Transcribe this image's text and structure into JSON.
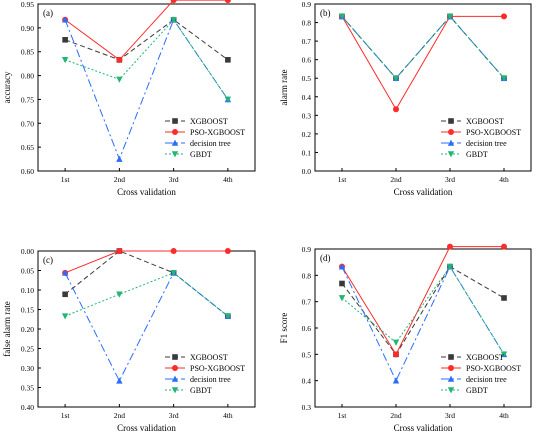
{
  "chart_data": [
    {
      "type": "line",
      "panel_label": "(a)",
      "xlabel": "Cross validation",
      "ylabel": "accuracy",
      "categories": [
        "1st",
        "2nd",
        "3rd",
        "4th"
      ],
      "ylim": [
        0.6,
        0.95
      ],
      "yticks": [
        "0.60",
        "0.65",
        "0.70",
        "0.75",
        "0.80",
        "0.85",
        "0.90",
        "0.95"
      ],
      "y_inverted": false,
      "legend_position": "bottom-right",
      "series": [
        {
          "name": "XGBOOST",
          "values": [
            0.875,
            0.833,
            0.917,
            0.833
          ],
          "color": "#3a3a3a",
          "dash": "5,3",
          "marker": "square"
        },
        {
          "name": "PSO-XGBOOST",
          "values": [
            0.917,
            0.833,
            0.958,
            0.958
          ],
          "color": "#ff2a2a",
          "dash": "",
          "marker": "circle"
        },
        {
          "name": "decision tree",
          "values": [
            0.917,
            0.625,
            0.917,
            0.75
          ],
          "color": "#2a6cff",
          "dash": "8,3,2,3",
          "marker": "triangle-up"
        },
        {
          "name": "GBDT",
          "values": [
            0.833,
            0.792,
            0.917,
            0.75
          ],
          "color": "#22b573",
          "dash": "2,2",
          "marker": "triangle-down"
        }
      ]
    },
    {
      "type": "line",
      "panel_label": "(b)",
      "xlabel": "Cross validation",
      "ylabel": "alarm rate",
      "categories": [
        "1st",
        "2nd",
        "3rd",
        "4th"
      ],
      "ylim": [
        0.0,
        0.9
      ],
      "yticks": [
        "0.0",
        "0.1",
        "0.2",
        "0.3",
        "0.4",
        "0.5",
        "0.6",
        "0.7",
        "0.8",
        "0.9"
      ],
      "y_inverted": false,
      "legend_position": "bottom-right",
      "series": [
        {
          "name": "XGBOOST",
          "values": [
            0.833,
            0.5,
            0.833,
            0.5
          ],
          "color": "#3a3a3a",
          "dash": "5,3",
          "marker": "square"
        },
        {
          "name": "PSO-XGBOOST",
          "values": [
            0.833,
            0.333,
            0.833,
            0.833
          ],
          "color": "#ff2a2a",
          "dash": "",
          "marker": "circle"
        },
        {
          "name": "decision tree",
          "values": [
            0.833,
            0.5,
            0.833,
            0.5
          ],
          "color": "#2a6cff",
          "dash": "8,3,2,3",
          "marker": "triangle-up"
        },
        {
          "name": "GBDT",
          "values": [
            0.833,
            0.5,
            0.833,
            0.5
          ],
          "color": "#22b573",
          "dash": "2,2",
          "marker": "triangle-down"
        }
      ]
    },
    {
      "type": "line",
      "panel_label": "(c)",
      "xlabel": "Cross validation",
      "ylabel": "false alarm rate",
      "categories": [
        "1st",
        "2nd",
        "3rd",
        "4th"
      ],
      "ylim": [
        0.0,
        0.4
      ],
      "yticks": [
        "0.00",
        "0.05",
        "0.10",
        "0.15",
        "0.20",
        "0.25",
        "0.30",
        "0.35",
        "0.40"
      ],
      "y_inverted": true,
      "legend_position": "bottom-right",
      "series": [
        {
          "name": "XGBOOST",
          "values": [
            0.111,
            0.0,
            0.056,
            0.167
          ],
          "color": "#3a3a3a",
          "dash": "5,3",
          "marker": "square"
        },
        {
          "name": "PSO-XGBOOST",
          "values": [
            0.056,
            0.0,
            0.0,
            0.0
          ],
          "color": "#ff2a2a",
          "dash": "",
          "marker": "circle"
        },
        {
          "name": "decision tree",
          "values": [
            0.056,
            0.333,
            0.056,
            0.167
          ],
          "color": "#2a6cff",
          "dash": "8,3,2,3",
          "marker": "triangle-up"
        },
        {
          "name": "GBDT",
          "values": [
            0.167,
            0.111,
            0.056,
            0.167
          ],
          "color": "#22b573",
          "dash": "2,2",
          "marker": "triangle-down"
        }
      ]
    },
    {
      "type": "line",
      "panel_label": "(d)",
      "xlabel": "Cross validation",
      "ylabel": "F1 score",
      "categories": [
        "1st",
        "2nd",
        "3rd",
        "4th"
      ],
      "ylim": [
        0.3,
        0.9
      ],
      "yticks": [
        "0.3",
        "0.4",
        "0.5",
        "0.6",
        "0.7",
        "0.8",
        "0.9"
      ],
      "y_inverted": false,
      "legend_position": "bottom-right",
      "series": [
        {
          "name": "XGBOOST",
          "values": [
            0.769,
            0.5,
            0.833,
            0.714
          ],
          "color": "#3a3a3a",
          "dash": "5,3",
          "marker": "square"
        },
        {
          "name": "PSO-XGBOOST",
          "values": [
            0.833,
            0.5,
            0.909,
            0.909
          ],
          "color": "#ff2a2a",
          "dash": "",
          "marker": "circle"
        },
        {
          "name": "decision tree",
          "values": [
            0.833,
            0.4,
            0.833,
            0.5
          ],
          "color": "#2a6cff",
          "dash": "8,3,2,3",
          "marker": "triangle-up"
        },
        {
          "name": "GBDT",
          "values": [
            0.714,
            0.545,
            0.833,
            0.5
          ],
          "color": "#22b573",
          "dash": "2,2",
          "marker": "triangle-down"
        }
      ]
    }
  ]
}
